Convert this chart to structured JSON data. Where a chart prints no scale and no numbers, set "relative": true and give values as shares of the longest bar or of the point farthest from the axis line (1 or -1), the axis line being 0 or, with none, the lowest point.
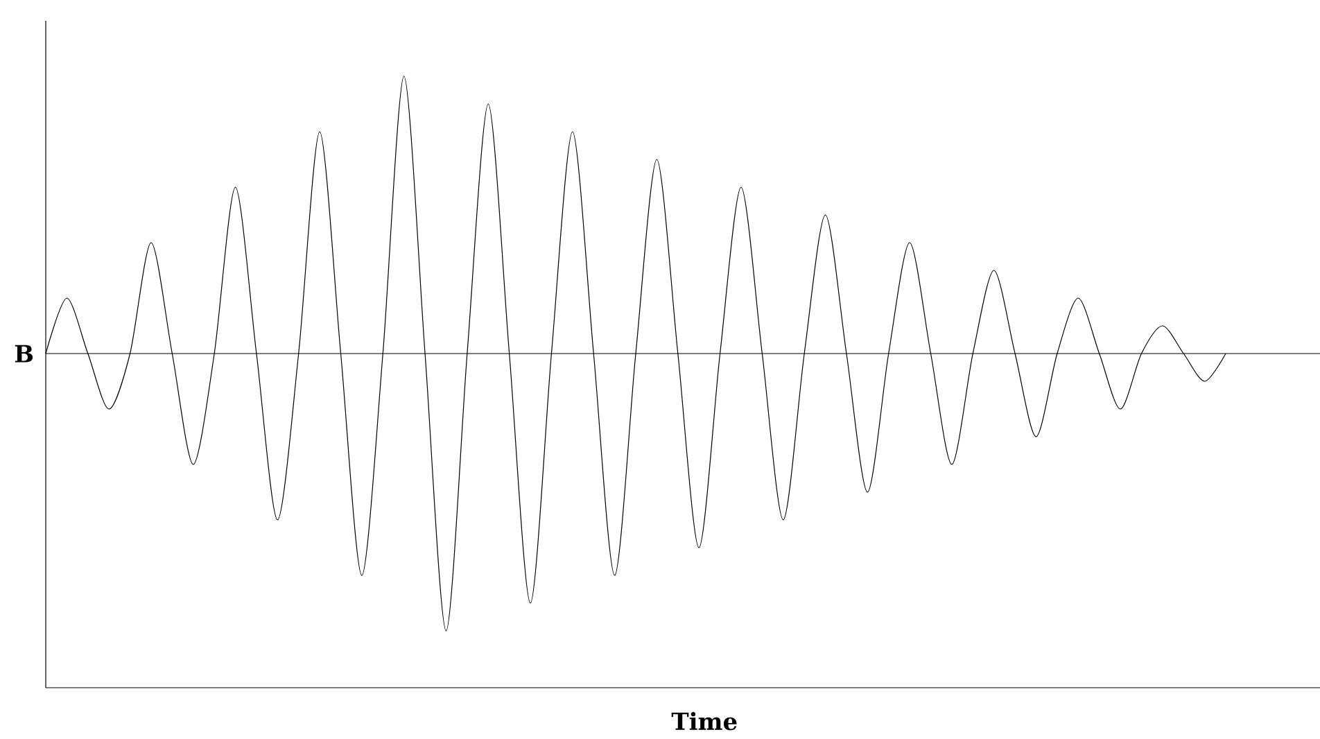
{
  "chart_data": {
    "type": "line",
    "relative": true,
    "xlabel": "Time",
    "ylabel": "B",
    "categories": [
      null,
      null,
      null,
      null,
      null,
      null,
      null,
      null,
      null,
      null,
      null,
      null,
      null,
      null,
      null,
      null,
      null,
      null,
      null,
      null,
      null,
      null,
      null,
      null,
      null,
      null,
      null,
      null,
      null,
      null,
      null,
      null,
      null,
      null,
      null,
      null,
      null,
      null,
      null,
      null,
      null,
      null,
      null,
      null,
      null,
      null,
      null,
      null,
      null,
      null,
      null,
      null,
      null,
      null,
      null,
      null,
      null
    ],
    "series": [
      {
        "color": "#000000",
        "values": [
          0,
          0.2,
          0,
          -0.2,
          0,
          0.4,
          0,
          -0.4,
          0,
          0.6,
          0,
          -0.6,
          0,
          0.8,
          0,
          -0.8,
          0,
          1.0,
          0,
          -1.0,
          0,
          0.9,
          0,
          -0.9,
          0,
          0.8,
          0,
          -0.8,
          0,
          0.7,
          0,
          -0.7,
          0,
          0.6,
          0,
          -0.6,
          0,
          0.5,
          0,
          -0.5,
          0,
          0.4,
          0,
          -0.4,
          0,
          0.3,
          0,
          -0.3,
          0,
          0.2,
          0,
          -0.2,
          0,
          0.1,
          0,
          -0.1,
          0
        ]
      }
    ]
  }
}
